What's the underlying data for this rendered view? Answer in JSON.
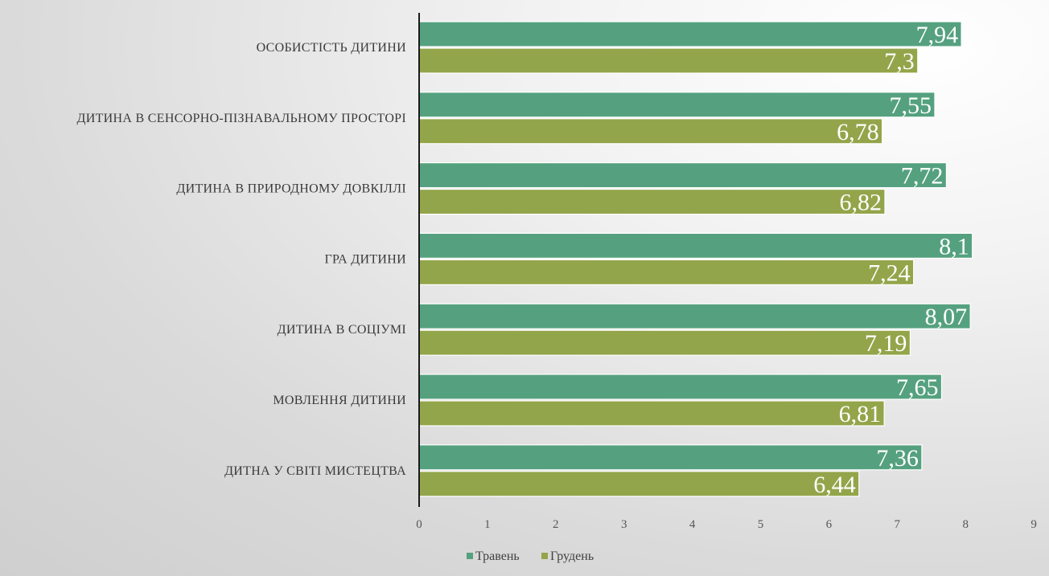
{
  "colors": {
    "series1": "#55a17f",
    "series2": "#93a54a",
    "axis_line": "#1a1a1a"
  },
  "chart_data": {
    "type": "bar",
    "orientation": "horizontal",
    "title": "",
    "xlabel": "",
    "ylabel": "",
    "xlim": [
      0,
      9
    ],
    "x_ticks": [
      "0",
      "1",
      "2",
      "3",
      "4",
      "5",
      "6",
      "7",
      "8",
      "9"
    ],
    "grid": false,
    "legend_position": "bottom",
    "categories": [
      "ОСОБИСТІСТЬ ДИТИНИ",
      "ДИТИНА В СЕНСОРНО-ПІЗНАВАЛЬНОМУ ПРОСТОРІ",
      "ДИТИНА В ПРИРОДНОМУ ДОВКІЛЛІ",
      "ГРА ДИТИНИ",
      "ДИТИНА В СОЦІУМІ",
      "МОВЛЕННЯ ДИТИНИ",
      "ДИТНА У СВІТІ МИСТЕЦТВА"
    ],
    "series": [
      {
        "name": "Травень",
        "values": [
          7.94,
          7.55,
          7.72,
          8.1,
          8.07,
          7.65,
          7.36
        ],
        "labels": [
          "7,94",
          "7,55",
          "7,72",
          "8,1",
          "8,07",
          "7,65",
          "7,36"
        ]
      },
      {
        "name": "Грудень",
        "values": [
          7.3,
          6.78,
          6.82,
          7.24,
          7.19,
          6.81,
          6.44
        ],
        "labels": [
          "7,3",
          "6,78",
          "6,82",
          "7,24",
          "7,19",
          "6,81",
          "6,44"
        ]
      }
    ]
  }
}
